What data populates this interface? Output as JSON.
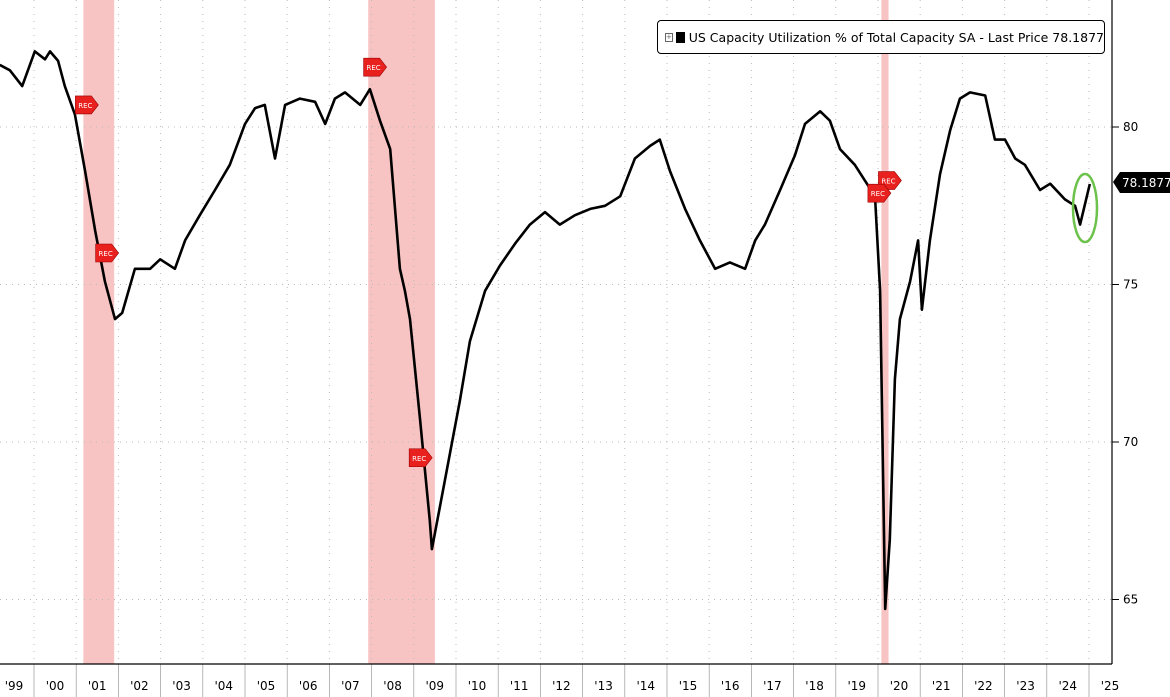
{
  "legend": {
    "expand_icon": "plus-box-icon",
    "label": "US Capacity Utilization % of Total Capacity SA - Last Price 78.1877"
  },
  "last_price_tag": "78.1877",
  "recession_marker_label": "REC",
  "colors": {
    "line": "#000000",
    "recession": "#f7b9b9",
    "rec_marker": "#e8201e",
    "highlight": "#6cc24a"
  },
  "chart_data": {
    "type": "line",
    "title": "US Capacity Utilization % of Total Capacity SA",
    "xlabel": "",
    "ylabel": "",
    "ylim": [
      63,
      84.5
    ],
    "xlim": [
      1999.19,
      2025.55
    ],
    "y_ticks": [
      65,
      70,
      75,
      80
    ],
    "y_tick_labels": [
      "65",
      "70",
      "75",
      "80"
    ],
    "x_tick_labels": [
      "'99",
      "'00",
      "'01",
      "'02",
      "'03",
      "'04",
      "'05",
      "'06",
      "'07",
      "'08",
      "'09",
      "'10",
      "'11",
      "'12",
      "'13",
      "'14",
      "'15",
      "'16",
      "'17",
      "'18",
      "'19",
      "'20",
      "'21",
      "'22",
      "'23",
      "'24",
      "'25"
    ],
    "grid": true,
    "legend_position": "top-right",
    "recessions": [
      [
        2001.17,
        2001.9
      ],
      [
        2007.92,
        2009.5
      ],
      [
        2020.08,
        2020.25
      ]
    ],
    "rec_markers": [
      [
        2001.17,
        80.7
      ],
      [
        2001.65,
        76.0
      ],
      [
        2008.0,
        81.9
      ],
      [
        2009.08,
        69.5
      ],
      [
        2020.2,
        78.3
      ],
      [
        2019.95,
        77.9
      ]
    ],
    "series": [
      {
        "name": "US Capacity Utilization % of Total Capacity SA",
        "points": [
          [
            1999.19,
            81.97
          ],
          [
            1999.43,
            81.8
          ],
          [
            1999.72,
            81.3
          ],
          [
            2000.02,
            82.4
          ],
          [
            2000.26,
            82.15
          ],
          [
            2000.38,
            82.4
          ],
          [
            2000.57,
            82.1
          ],
          [
            2000.73,
            81.3
          ],
          [
            2000.97,
            80.4
          ],
          [
            2001.21,
            78.6
          ],
          [
            2001.45,
            76.7
          ],
          [
            2001.68,
            75.1
          ],
          [
            2001.92,
            73.9
          ],
          [
            2002.09,
            74.1
          ],
          [
            2002.39,
            75.5
          ],
          [
            2002.75,
            75.5
          ],
          [
            2002.99,
            75.8
          ],
          [
            2003.34,
            75.5
          ],
          [
            2003.58,
            76.4
          ],
          [
            2003.93,
            77.2
          ],
          [
            2004.29,
            78.0
          ],
          [
            2004.64,
            78.8
          ],
          [
            2005.0,
            80.1
          ],
          [
            2005.24,
            80.6
          ],
          [
            2005.47,
            80.7
          ],
          [
            2005.71,
            79.0
          ],
          [
            2005.95,
            80.7
          ],
          [
            2006.3,
            80.9
          ],
          [
            2006.66,
            80.8
          ],
          [
            2006.9,
            80.1
          ],
          [
            2007.13,
            80.9
          ],
          [
            2007.37,
            81.1
          ],
          [
            2007.73,
            80.7
          ],
          [
            2007.96,
            81.2
          ],
          [
            2008.2,
            80.2
          ],
          [
            2008.44,
            79.3
          ],
          [
            2008.67,
            75.5
          ],
          [
            2008.79,
            74.8
          ],
          [
            2008.91,
            73.9
          ],
          [
            2009.15,
            70.7
          ],
          [
            2009.38,
            67.5
          ],
          [
            2009.43,
            66.6
          ],
          [
            2009.74,
            68.8
          ],
          [
            2010.09,
            71.3
          ],
          [
            2010.33,
            73.2
          ],
          [
            2010.69,
            74.8
          ],
          [
            2011.04,
            75.6
          ],
          [
            2011.4,
            76.3
          ],
          [
            2011.75,
            76.9
          ],
          [
            2012.11,
            77.3
          ],
          [
            2012.46,
            76.9
          ],
          [
            2012.82,
            77.2
          ],
          [
            2013.18,
            77.4
          ],
          [
            2013.53,
            77.5
          ],
          [
            2013.89,
            77.8
          ],
          [
            2014.24,
            79.0
          ],
          [
            2014.6,
            79.4
          ],
          [
            2014.83,
            79.6
          ],
          [
            2015.07,
            78.6
          ],
          [
            2015.43,
            77.4
          ],
          [
            2015.78,
            76.4
          ],
          [
            2016.14,
            75.5
          ],
          [
            2016.49,
            75.7
          ],
          [
            2016.85,
            75.5
          ],
          [
            2017.09,
            76.4
          ],
          [
            2017.32,
            76.9
          ],
          [
            2017.68,
            78.0
          ],
          [
            2018.03,
            79.1
          ],
          [
            2018.27,
            80.1
          ],
          [
            2018.63,
            80.5
          ],
          [
            2018.86,
            80.2
          ],
          [
            2019.1,
            79.3
          ],
          [
            2019.45,
            78.8
          ],
          [
            2019.69,
            78.3
          ],
          [
            2019.93,
            77.8
          ],
          [
            2020.05,
            74.8
          ],
          [
            2020.17,
            64.7
          ],
          [
            2020.28,
            66.9
          ],
          [
            2020.4,
            72.0
          ],
          [
            2020.52,
            73.9
          ],
          [
            2020.76,
            75.1
          ],
          [
            2020.95,
            76.4
          ],
          [
            2021.04,
            74.2
          ],
          [
            2021.23,
            76.4
          ],
          [
            2021.47,
            78.5
          ],
          [
            2021.71,
            79.9
          ],
          [
            2021.94,
            80.9
          ],
          [
            2022.18,
            81.1
          ],
          [
            2022.54,
            81.0
          ],
          [
            2022.77,
            79.6
          ],
          [
            2023.01,
            79.6
          ],
          [
            2023.25,
            79.0
          ],
          [
            2023.48,
            78.8
          ],
          [
            2023.84,
            78.0
          ],
          [
            2024.08,
            78.2
          ],
          [
            2024.43,
            77.7
          ],
          [
            2024.67,
            77.5
          ],
          [
            2024.79,
            76.9
          ],
          [
            2025.02,
            78.19
          ]
        ]
      }
    ]
  }
}
